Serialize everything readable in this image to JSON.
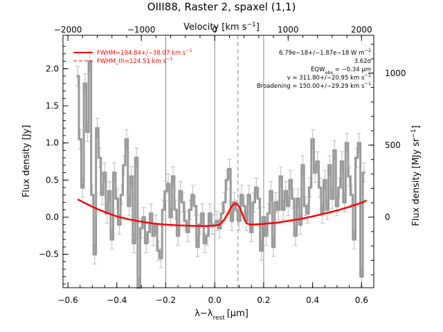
{
  "chart_data": {
    "type": "line",
    "title": "OIII88, Raster 2, spaxel (1,1)",
    "xlabel": "λ−λ",
    "xlabel_sub": "rest",
    "xlabel_unit": "[μm]",
    "ylabel": "Flux density [Jy]",
    "top_xlabel": "Velocity [km s",
    "top_xlabel_sup": "−1",
    "top_xlabel_end": "]",
    "right_ylabel": "Flux density [MJy sr",
    "right_ylabel_sup": "−1",
    "right_ylabel_end": "]",
    "xlim": [
      -0.62,
      0.65
    ],
    "ylim": [
      -0.95,
      2.45
    ],
    "x_ticks": [
      "−0.6",
      "−0.4",
      "−0.2",
      "0.0",
      "0.2",
      "0.4",
      "0.6"
    ],
    "y_ticks": [
      "2.0",
      "1.5",
      "1.0",
      "0.5",
      "0.0",
      "−0.5"
    ],
    "top_ticks": [
      "−2000",
      "−1000",
      "0",
      "1000",
      "2000"
    ],
    "right_ticks": [
      "1000",
      "500",
      "0"
    ],
    "grid": false,
    "legend_position": "top-left",
    "legend": [
      {
        "text": "FWHM=194.84+/−38.07 km s",
        "sup": "−1",
        "color": "#ff0000",
        "style": "solid"
      },
      {
        "text": "FWHM_th=124.51 km s",
        "sup": "−1",
        "color": "#ff0000",
        "style": "dashed"
      }
    ],
    "annotations": [
      "6.79e−18+/−1.87e−18 W m",
      "3.62σ",
      "EQW",
      "v = 311.80+/−20.95 km s",
      "Broadening = 150.00+/−29.29 km s"
    ],
    "annotation_sups": [
      "−2",
      "",
      "",
      "−1",
      "−1"
    ],
    "eqw_sub": "obs",
    "eqw_rest": " = −0.34 μm",
    "vertical_lines": [
      {
        "x": -0.2,
        "style": "solid"
      },
      {
        "x": 0.0,
        "style": "solid"
      },
      {
        "x": 0.095,
        "style": "dashed"
      },
      {
        "x": 0.2,
        "style": "solid"
      }
    ],
    "colors": {
      "spectrum": "#999999",
      "errorbars": "#bbbbbb",
      "fit": "#ff0000",
      "component": "#ff7f50",
      "marker_lines": "#888888"
    },
    "series": [
      {
        "name": "Spectrum",
        "x": [
          -0.56,
          -0.55,
          -0.54,
          -0.53,
          -0.52,
          -0.51,
          -0.5,
          -0.49,
          -0.48,
          -0.47,
          -0.46,
          -0.45,
          -0.44,
          -0.43,
          -0.42,
          -0.41,
          -0.4,
          -0.39,
          -0.38,
          -0.37,
          -0.36,
          -0.35,
          -0.34,
          -0.33,
          -0.32,
          -0.31,
          -0.3,
          -0.29,
          -0.28,
          -0.27,
          -0.26,
          -0.25,
          -0.24,
          -0.23,
          -0.22,
          -0.21,
          -0.2,
          -0.19,
          -0.18,
          -0.17,
          -0.16,
          -0.15,
          -0.14,
          -0.13,
          -0.12,
          -0.11,
          -0.1,
          -0.09,
          -0.08,
          -0.07,
          -0.06,
          -0.05,
          -0.04,
          -0.03,
          -0.02,
          -0.01,
          0.0,
          0.01,
          0.02,
          0.03,
          0.04,
          0.05,
          0.06,
          0.07,
          0.08,
          0.09,
          0.1,
          0.11,
          0.12,
          0.13,
          0.14,
          0.15,
          0.16,
          0.17,
          0.18,
          0.19,
          0.2,
          0.21,
          0.22,
          0.23,
          0.24,
          0.25,
          0.26,
          0.27,
          0.28,
          0.29,
          0.3,
          0.31,
          0.32,
          0.33,
          0.34,
          0.35,
          0.36,
          0.37,
          0.38,
          0.39,
          0.4,
          0.41,
          0.42,
          0.43,
          0.44,
          0.45,
          0.46,
          0.47,
          0.48,
          0.49,
          0.5,
          0.51,
          0.52,
          0.53,
          0.54,
          0.55,
          0.56,
          0.57,
          0.58,
          0.59,
          0.6,
          0.61
        ],
        "y": [
          1.9,
          1.05,
          0.4,
          1.8,
          1.15,
          2.1,
          0.3,
          -0.5,
          1.2,
          0.8,
          0.3,
          0.6,
          0.05,
          0.35,
          -0.3,
          0.6,
          0.25,
          -0.1,
          0.3,
          0.7,
          1.05,
          0.15,
          0.55,
          -0.35,
          0.8,
          -0.95,
          -0.15,
          0.0,
          -0.35,
          -0.2,
          0.05,
          -0.25,
          -0.1,
          -0.45,
          -0.55,
          0.1,
          0.35,
          0.45,
          0.0,
          0.55,
          0.1,
          -0.25,
          0.35,
          0.2,
          -0.05,
          -0.2,
          0.1,
          0.3,
          0.15,
          -0.4,
          -0.1,
          0.05,
          -0.35,
          -0.25,
          0.05,
          -0.1,
          -0.1,
          -0.05,
          -0.15,
          0.05,
          0.2,
          0.5,
          0.65,
          -0.05,
          0.2,
          0.1,
          -0.05,
          0.3,
          0.15,
          -0.05,
          0.3,
          -0.2,
          0.2,
          0.4,
          0.25,
          -0.45,
          0.0,
          -0.25,
          0.05,
          0.35,
          -0.4,
          0.2,
          0.1,
          0.55,
          0.1,
          0.35,
          0.15,
          0.5,
          0.25,
          -0.25,
          0.25,
          -0.1,
          0.7,
          0.15,
          0.05,
          0.4,
          1.05,
          0.6,
          0.75,
          0.4,
          0.05,
          0.5,
          0.1,
          0.7,
          0.25,
          0.9,
          0.15,
          0.4,
          0.75,
          0.2,
          1.0,
          0.55,
          0.3,
          -0.3,
          0.8,
          1.0,
          -0.8,
          0.6
        ]
      },
      {
        "name": "Fit",
        "x": [
          -0.56,
          -0.5,
          -0.45,
          -0.4,
          -0.35,
          -0.3,
          -0.25,
          -0.2,
          -0.15,
          -0.1,
          -0.05,
          0.0,
          0.02,
          0.04,
          0.06,
          0.07,
          0.08,
          0.09,
          0.1,
          0.11,
          0.12,
          0.13,
          0.14,
          0.15,
          0.2,
          0.25,
          0.3,
          0.35,
          0.4,
          0.45,
          0.5,
          0.55,
          0.6,
          0.62
        ],
        "y": [
          0.24,
          0.14,
          0.07,
          0.01,
          -0.03,
          -0.06,
          -0.085,
          -0.1,
          -0.11,
          -0.115,
          -0.12,
          -0.115,
          -0.1,
          -0.03,
          0.09,
          0.15,
          0.18,
          0.18,
          0.14,
          0.07,
          -0.02,
          -0.08,
          -0.095,
          -0.1,
          -0.09,
          -0.075,
          -0.05,
          -0.025,
          0.01,
          0.05,
          0.09,
          0.14,
          0.195,
          0.225
        ]
      },
      {
        "name": "Component",
        "x": [
          0.0,
          0.02,
          0.04,
          0.06,
          0.07,
          0.08,
          0.09,
          0.1,
          0.11,
          0.12,
          0.13,
          0.15
        ],
        "y": [
          -0.11,
          -0.1,
          -0.05,
          0.06,
          0.12,
          0.165,
          0.17,
          0.13,
          0.05,
          -0.03,
          -0.075,
          -0.095
        ]
      }
    ]
  }
}
